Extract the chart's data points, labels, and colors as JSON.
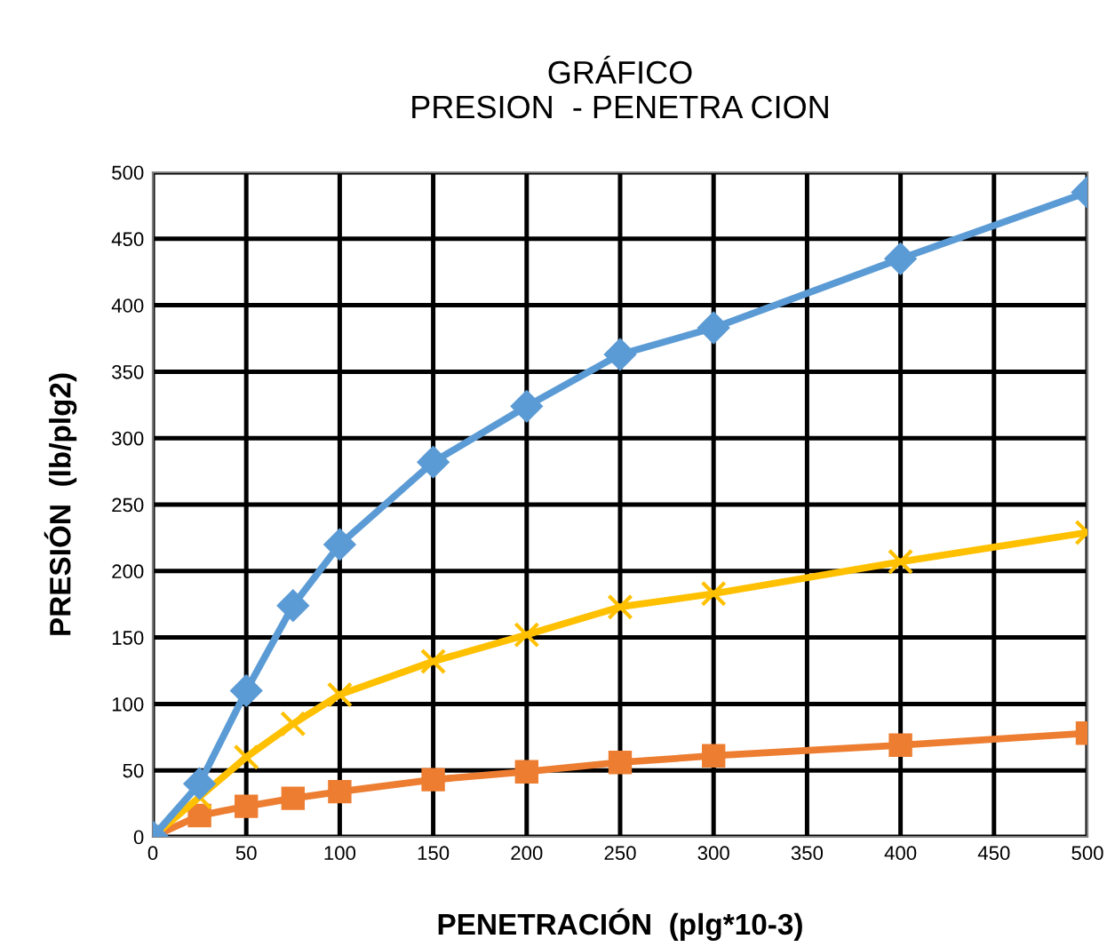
{
  "chart_data": {
    "type": "line",
    "title": "GRÁFICO\nPRESION  - PENETRA CION",
    "xlabel": "PENETRACIÓN  (plg*10-3)",
    "ylabel": "PRESIÓN  (lb/plg2)",
    "x": [
      0,
      25,
      50,
      75,
      100,
      150,
      200,
      250,
      300,
      400,
      500
    ],
    "series": [
      {
        "color": "#5b9bd5",
        "marker": "diamond",
        "values": [
          0,
          40,
          110,
          174,
          220,
          282,
          324,
          363,
          383,
          435,
          485
        ]
      },
      {
        "color": "#ffc000",
        "marker": "cross",
        "values": [
          0,
          30,
          60,
          85,
          107,
          132,
          152,
          173,
          183,
          207,
          229
        ]
      },
      {
        "color": "#ed7d31",
        "marker": "square",
        "values": [
          0,
          16,
          23,
          29,
          34,
          43,
          49,
          56,
          61,
          69,
          78
        ]
      }
    ],
    "xlim": [
      0,
      500
    ],
    "xticks": [
      0,
      50,
      100,
      150,
      200,
      250,
      300,
      350,
      400,
      450,
      500
    ],
    "ylim": [
      0,
      500
    ],
    "yticks": [
      0,
      50,
      100,
      150,
      200,
      250,
      300,
      350,
      400,
      450,
      500
    ],
    "grid": true,
    "legend": false
  }
}
